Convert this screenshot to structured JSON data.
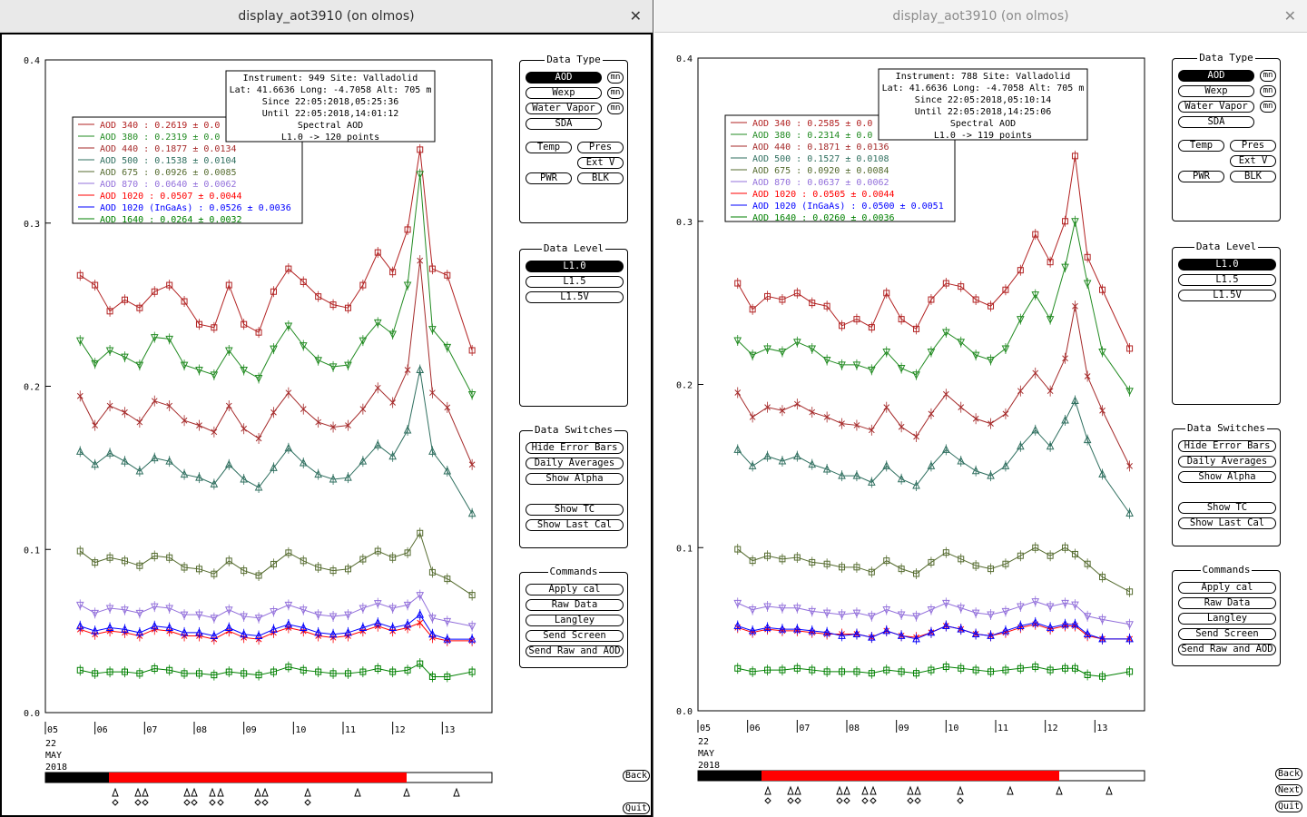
{
  "windows": [
    {
      "title": "display_aot3910 (on olmos)",
      "info": {
        "instrument_line": "Instrument: 949 Site: Valladolid",
        "latlon_line": "Lat: 41.6636 Long: -4.7058 Alt: 705 m",
        "since_line": "Since 22:05:2018,05:25:36",
        "until_line": "Until 22:05:2018,14:01:12",
        "product_line": "Spectral AOD",
        "level_line": "L1.0 -> 120 points"
      },
      "legend": [
        {
          "label": "AOD 340   : 0.2619 ± 0.0",
          "color": "#b22222"
        },
        {
          "label": "AOD 380   : 0.2319 ± 0.0",
          "color": "#228b22"
        },
        {
          "label": "AOD 440   : 0.1877 ± 0.0134",
          "color": "#a52a2a"
        },
        {
          "label": "AOD 500   : 0.1538 ± 0.0104",
          "color": "#2f6f5f"
        },
        {
          "label": "AOD 675   : 0.0926 ± 0.0085",
          "color": "#556b2f"
        },
        {
          "label": "AOD 870   : 0.0640 ± 0.0062",
          "color": "#9370db"
        },
        {
          "label": "AOD 1020  : 0.0507 ± 0.0044",
          "color": "#ff0000"
        },
        {
          "label": "AOD 1020 (InGaAs)  : 0.0526 ± 0.0036",
          "color": "#0000ff"
        },
        {
          "label": "AOD 1640  : 0.0264 ± 0.0032",
          "color": "#008000"
        }
      ]
    },
    {
      "title": "display_aot3910 (on olmos)",
      "info": {
        "instrument_line": "Instrument: 788 Site: Valladolid",
        "latlon_line": "Lat: 41.6636 Long: -4.7058 Alt: 705 m",
        "since_line": "Since 22:05:2018,05:10:14",
        "until_line": "Until 22:05:2018,14:25:06",
        "product_line": "Spectral AOD",
        "level_line": "L1.0 -> 119 points"
      },
      "legend": [
        {
          "label": "AOD 340   : 0.2585 ± 0.0",
          "color": "#b22222"
        },
        {
          "label": "AOD 380   : 0.2314 ± 0.0",
          "color": "#228b22"
        },
        {
          "label": "AOD 440   : 0.1871 ± 0.0136",
          "color": "#a52a2a"
        },
        {
          "label": "AOD 500   : 0.1527 ± 0.0108",
          "color": "#2f6f5f"
        },
        {
          "label": "AOD 675   : 0.0920 ± 0.0084",
          "color": "#556b2f"
        },
        {
          "label": "AOD 870   : 0.0637 ± 0.0062",
          "color": "#9370db"
        },
        {
          "label": "AOD 1020  : 0.0505 ± 0.0044",
          "color": "#ff0000"
        },
        {
          "label": "AOD 1020 (InGaAs)  : 0.0500 ± 0.0051",
          "color": "#0000ff"
        },
        {
          "label": "AOD 1640  : 0.0260 ± 0.0036",
          "color": "#008000"
        }
      ]
    }
  ],
  "axis": {
    "y_ticks": [
      "0.0",
      "0.1",
      "0.2",
      "0.3",
      "0.4"
    ],
    "x_ticks": [
      "05",
      "06",
      "07",
      "08",
      "09",
      "10",
      "11",
      "12",
      "13"
    ],
    "date_line1": "22",
    "date_line2": "MAY",
    "date_line3": "2018"
  },
  "controls": {
    "data_type_title": "Data Type",
    "aod": "AOD",
    "wexp": "Wexp",
    "water_vapor": "Water Vapor",
    "sda": "SDA",
    "mn": "mn",
    "temp": "Temp",
    "pres": "Pres",
    "ext_v": "Ext V",
    "pwr": "PWR",
    "blk": "BLK",
    "data_level_title": "Data Level",
    "l10": "L1.0",
    "l15": "L1.5",
    "l15v": "L1.5V",
    "switches_title": "Data Switches",
    "hide_error_bars": "Hide Error Bars",
    "daily_averages": "Daily Averages",
    "show_alpha": "Show Alpha",
    "show_tc": "Show TC",
    "show_last_cal": "Show Last Cal",
    "commands_title": "Commands",
    "apply_cal": "Apply cal",
    "raw_data": "Raw Data",
    "langley": "Langley",
    "send_screen": "Send Screen",
    "send_raw_aod": "Send Raw and AOD",
    "back": "Back",
    "next": "Next",
    "quit": "Quit"
  },
  "chart_data": [
    {
      "type": "line",
      "title": "Spectral AOD",
      "xlabel": "",
      "ylabel": "",
      "x_range": [
        5.0,
        14.0
      ],
      "ylim": [
        0,
        0.4
      ],
      "x_hours": [
        5.7,
        6.0,
        6.3,
        6.6,
        6.9,
        7.2,
        7.5,
        7.8,
        8.1,
        8.4,
        8.7,
        9.0,
        9.3,
        9.6,
        9.9,
        10.2,
        10.5,
        10.8,
        11.1,
        11.4,
        11.7,
        12.0,
        12.3,
        12.55,
        12.8,
        13.1,
        13.6
      ],
      "series": [
        {
          "name": "AOD 340",
          "values": [
            0.268,
            0.262,
            0.246,
            0.253,
            0.248,
            0.258,
            0.262,
            0.252,
            0.238,
            0.236,
            0.262,
            0.238,
            0.233,
            0.258,
            0.272,
            0.264,
            0.255,
            0.25,
            0.248,
            0.262,
            0.282,
            0.27,
            0.296,
            0.345,
            0.272,
            0.268,
            0.222
          ]
        },
        {
          "name": "AOD 380",
          "values": [
            0.228,
            0.214,
            0.222,
            0.218,
            0.213,
            0.23,
            0.229,
            0.213,
            0.21,
            0.207,
            0.222,
            0.21,
            0.205,
            0.223,
            0.237,
            0.225,
            0.216,
            0.212,
            0.213,
            0.228,
            0.239,
            0.232,
            0.262,
            0.33,
            0.235,
            0.224,
            0.195
          ]
        },
        {
          "name": "AOD 440",
          "values": [
            0.194,
            0.176,
            0.188,
            0.184,
            0.178,
            0.191,
            0.188,
            0.179,
            0.176,
            0.172,
            0.188,
            0.174,
            0.168,
            0.184,
            0.196,
            0.186,
            0.178,
            0.175,
            0.176,
            0.186,
            0.199,
            0.19,
            0.21,
            0.277,
            0.196,
            0.187,
            0.152
          ]
        },
        {
          "name": "AOD 500",
          "values": [
            0.16,
            0.152,
            0.159,
            0.154,
            0.148,
            0.156,
            0.154,
            0.146,
            0.144,
            0.14,
            0.152,
            0.143,
            0.138,
            0.15,
            0.162,
            0.153,
            0.146,
            0.143,
            0.144,
            0.154,
            0.164,
            0.157,
            0.173,
            0.21,
            0.16,
            0.148,
            0.122
          ]
        },
        {
          "name": "AOD 675",
          "values": [
            0.099,
            0.092,
            0.095,
            0.093,
            0.09,
            0.096,
            0.095,
            0.089,
            0.088,
            0.085,
            0.093,
            0.087,
            0.084,
            0.091,
            0.098,
            0.093,
            0.089,
            0.087,
            0.088,
            0.094,
            0.099,
            0.095,
            0.098,
            0.11,
            0.086,
            0.082,
            0.072
          ]
        },
        {
          "name": "AOD 870",
          "values": [
            0.066,
            0.061,
            0.064,
            0.063,
            0.061,
            0.065,
            0.064,
            0.06,
            0.06,
            0.058,
            0.063,
            0.059,
            0.058,
            0.062,
            0.066,
            0.063,
            0.06,
            0.059,
            0.06,
            0.064,
            0.067,
            0.064,
            0.066,
            0.072,
            0.058,
            0.056,
            0.053
          ]
        },
        {
          "name": "AOD 1020",
          "values": [
            0.051,
            0.048,
            0.05,
            0.049,
            0.047,
            0.051,
            0.05,
            0.047,
            0.047,
            0.045,
            0.05,
            0.046,
            0.045,
            0.049,
            0.052,
            0.05,
            0.047,
            0.046,
            0.047,
            0.05,
            0.053,
            0.05,
            0.052,
            0.055,
            0.046,
            0.044,
            0.044
          ]
        },
        {
          "name": "AOD 1020 (InGaAs)",
          "values": [
            0.053,
            0.05,
            0.052,
            0.051,
            0.049,
            0.053,
            0.052,
            0.049,
            0.049,
            0.047,
            0.052,
            0.048,
            0.047,
            0.051,
            0.054,
            0.052,
            0.049,
            0.048,
            0.049,
            0.052,
            0.055,
            0.052,
            0.054,
            0.06,
            0.048,
            0.045,
            0.045
          ]
        },
        {
          "name": "AOD 1640",
          "values": [
            0.026,
            0.024,
            0.025,
            0.025,
            0.024,
            0.027,
            0.026,
            0.024,
            0.024,
            0.023,
            0.025,
            0.024,
            0.023,
            0.025,
            0.028,
            0.026,
            0.025,
            0.024,
            0.024,
            0.025,
            0.027,
            0.025,
            0.026,
            0.03,
            0.022,
            0.022,
            0.025
          ]
        }
      ]
    },
    {
      "type": "line",
      "title": "Spectral AOD",
      "xlabel": "",
      "ylabel": "",
      "x_range": [
        5.0,
        14.0
      ],
      "ylim": [
        0,
        0.4
      ],
      "x_hours": [
        5.8,
        6.1,
        6.4,
        6.7,
        7.0,
        7.3,
        7.6,
        7.9,
        8.2,
        8.5,
        8.8,
        9.1,
        9.4,
        9.7,
        10.0,
        10.3,
        10.6,
        10.9,
        11.2,
        11.5,
        11.8,
        12.1,
        12.4,
        12.6,
        12.85,
        13.15,
        13.7
      ],
      "series": [
        {
          "name": "AOD 340",
          "values": [
            0.262,
            0.246,
            0.254,
            0.252,
            0.256,
            0.25,
            0.248,
            0.236,
            0.24,
            0.235,
            0.256,
            0.24,
            0.234,
            0.252,
            0.262,
            0.26,
            0.252,
            0.248,
            0.258,
            0.27,
            0.292,
            0.275,
            0.3,
            0.34,
            0.278,
            0.258,
            0.222
          ]
        },
        {
          "name": "AOD 380",
          "values": [
            0.227,
            0.218,
            0.222,
            0.22,
            0.226,
            0.222,
            0.215,
            0.212,
            0.212,
            0.209,
            0.22,
            0.21,
            0.206,
            0.22,
            0.232,
            0.226,
            0.218,
            0.215,
            0.222,
            0.24,
            0.255,
            0.24,
            0.272,
            0.3,
            0.262,
            0.22,
            0.196
          ]
        },
        {
          "name": "AOD 440",
          "values": [
            0.195,
            0.18,
            0.186,
            0.184,
            0.188,
            0.183,
            0.18,
            0.176,
            0.175,
            0.172,
            0.186,
            0.174,
            0.168,
            0.182,
            0.194,
            0.186,
            0.179,
            0.176,
            0.182,
            0.196,
            0.207,
            0.196,
            0.216,
            0.248,
            0.205,
            0.184,
            0.15
          ]
        },
        {
          "name": "AOD 500",
          "values": [
            0.16,
            0.15,
            0.156,
            0.153,
            0.156,
            0.151,
            0.148,
            0.144,
            0.144,
            0.14,
            0.15,
            0.142,
            0.138,
            0.15,
            0.16,
            0.153,
            0.147,
            0.144,
            0.15,
            0.162,
            0.172,
            0.162,
            0.178,
            0.19,
            0.166,
            0.145,
            0.121
          ]
        },
        {
          "name": "AOD 675",
          "values": [
            0.099,
            0.092,
            0.095,
            0.093,
            0.094,
            0.091,
            0.09,
            0.088,
            0.088,
            0.085,
            0.092,
            0.087,
            0.084,
            0.091,
            0.097,
            0.093,
            0.089,
            0.087,
            0.09,
            0.095,
            0.1,
            0.095,
            0.1,
            0.096,
            0.09,
            0.082,
            0.073
          ]
        },
        {
          "name": "AOD 870",
          "values": [
            0.066,
            0.062,
            0.064,
            0.063,
            0.063,
            0.061,
            0.06,
            0.059,
            0.06,
            0.058,
            0.062,
            0.059,
            0.058,
            0.062,
            0.066,
            0.063,
            0.06,
            0.059,
            0.061,
            0.064,
            0.067,
            0.064,
            0.066,
            0.065,
            0.058,
            0.056,
            0.053
          ]
        },
        {
          "name": "AOD 1020",
          "values": [
            0.051,
            0.048,
            0.05,
            0.049,
            0.049,
            0.048,
            0.047,
            0.047,
            0.047,
            0.045,
            0.049,
            0.046,
            0.045,
            0.048,
            0.052,
            0.05,
            0.047,
            0.046,
            0.048,
            0.051,
            0.053,
            0.05,
            0.052,
            0.052,
            0.046,
            0.044,
            0.044
          ]
        },
        {
          "name": "AOD 1020 (InGaAs)",
          "values": [
            0.052,
            0.049,
            0.051,
            0.05,
            0.05,
            0.049,
            0.048,
            0.046,
            0.047,
            0.045,
            0.049,
            0.046,
            0.044,
            0.048,
            0.052,
            0.05,
            0.047,
            0.046,
            0.049,
            0.052,
            0.054,
            0.051,
            0.053,
            0.053,
            0.047,
            0.044,
            0.044
          ]
        },
        {
          "name": "AOD 1640",
          "values": [
            0.026,
            0.024,
            0.025,
            0.025,
            0.026,
            0.025,
            0.024,
            0.024,
            0.024,
            0.023,
            0.025,
            0.024,
            0.023,
            0.025,
            0.027,
            0.026,
            0.025,
            0.024,
            0.025,
            0.026,
            0.027,
            0.025,
            0.026,
            0.026,
            0.022,
            0.021,
            0.024
          ]
        }
      ]
    }
  ]
}
